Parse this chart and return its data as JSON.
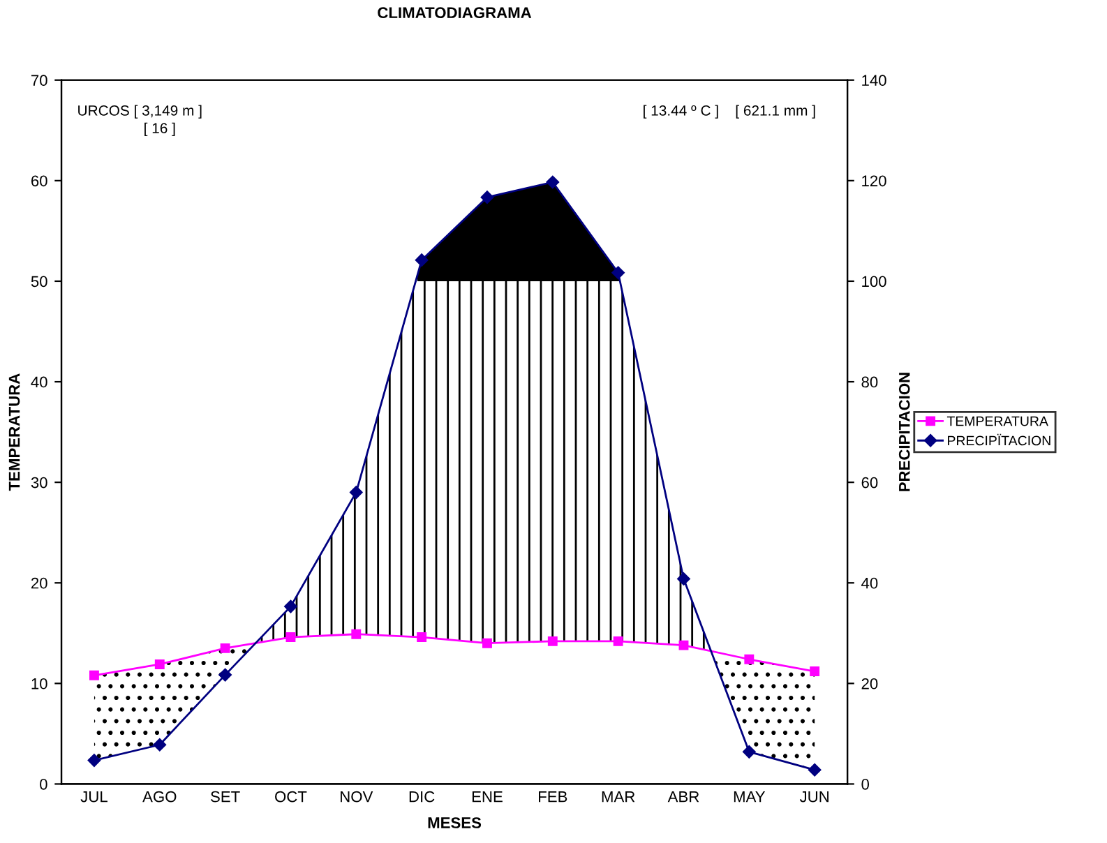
{
  "chart_data": {
    "type": "line",
    "title": "CLIMATODIAGRAMA",
    "xlabel": "MESES",
    "ylabel": "TEMPERATURA",
    "y2label": "PRECIPITACION",
    "categories": [
      "JUL",
      "AGO",
      "SET",
      "OCT",
      "NOV",
      "DIC",
      "ENE",
      "FEB",
      "MAR",
      "ABR",
      "MAY",
      "JUN"
    ],
    "series": [
      {
        "name": "TEMPERATURA",
        "color": "#ff00ff",
        "marker": "square",
        "values": [
          10.8,
          11.9,
          13.5,
          14.6,
          14.9,
          14.6,
          14.0,
          14.2,
          14.2,
          13.8,
          12.4,
          11.2
        ]
      },
      {
        "name": "PRECIPÏTACION",
        "color": "#000080",
        "marker": "diamond",
        "axis": "y2",
        "values": [
          4.7,
          7.8,
          21.7,
          35.3,
          58.0,
          104.2,
          116.7,
          119.7,
          101.7,
          40.8,
          6.4,
          2.8
        ]
      }
    ],
    "ylim": [
      0,
      70
    ],
    "yticks": [
      0,
      10,
      20,
      30,
      40,
      50,
      60,
      70
    ],
    "y2lim": [
      0,
      140
    ],
    "y2ticks": [
      0,
      20,
      40,
      60,
      80,
      100,
      120,
      140
    ],
    "annotations": [
      "URCOS [ 3,149 m ]",
      "[ 16 ]",
      "[ 13.44 º C ]    [ 621.1 mm ]"
    ],
    "legend": "right",
    "grid": false,
    "line_style": "solid"
  }
}
